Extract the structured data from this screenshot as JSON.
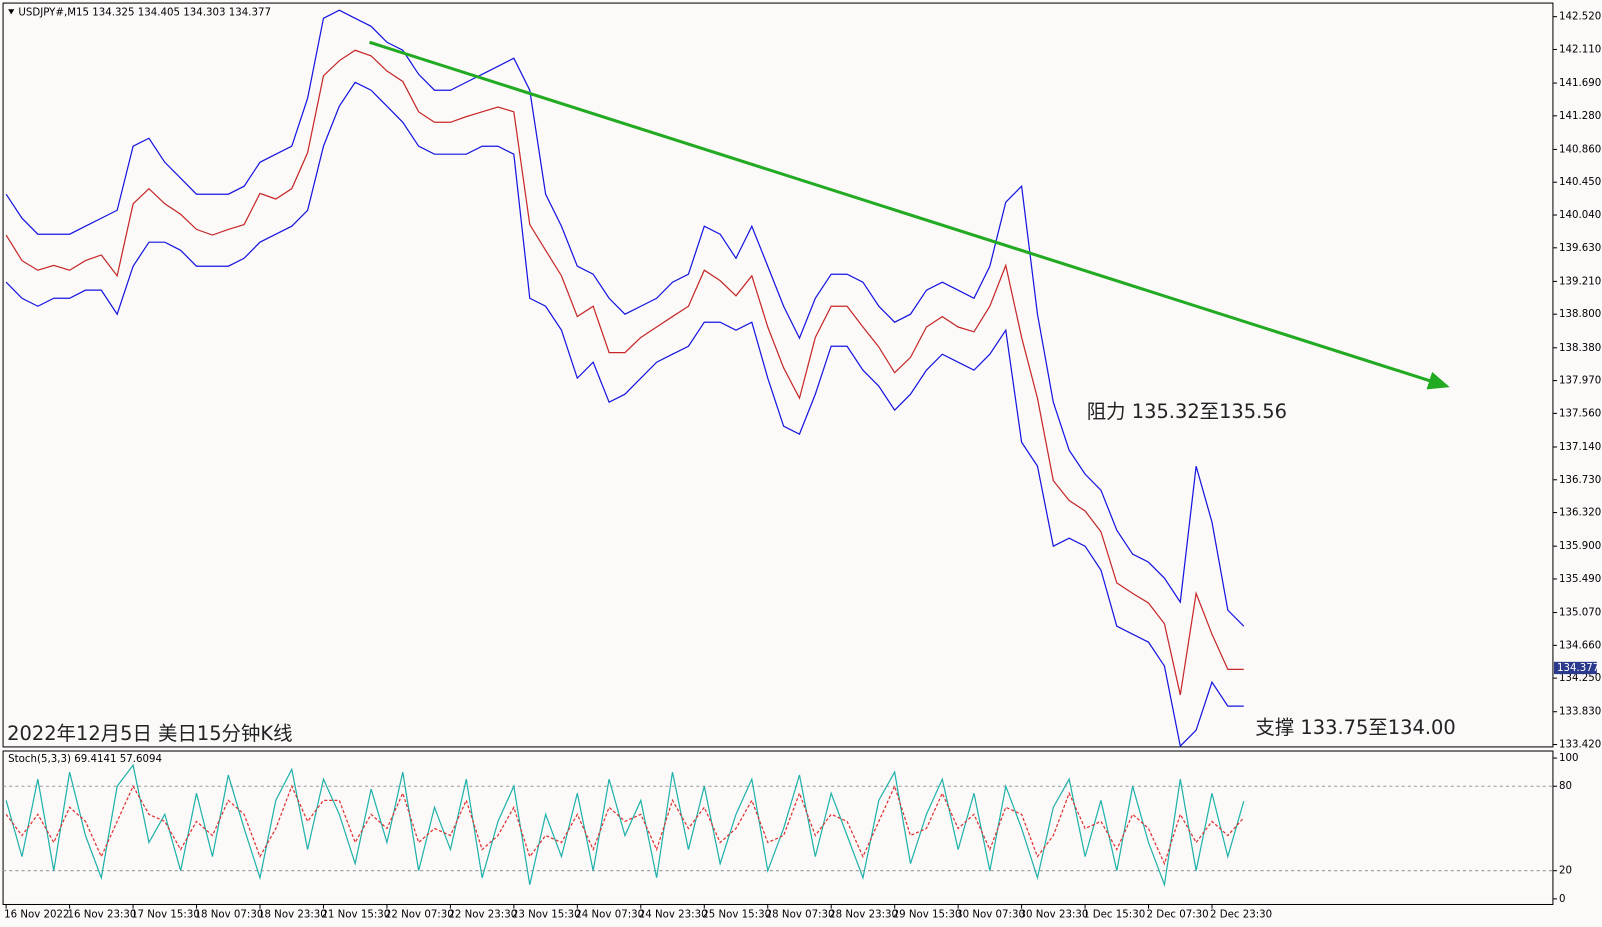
{
  "chart_data": [
    {
      "type": "line",
      "title": "USDJPY#,M15",
      "ohlc": [
        134.325,
        134.405,
        134.303,
        134.377
      ],
      "categories": [
        "16 Nov 2022",
        null,
        null,
        null,
        "16 Nov 23:30",
        null,
        null,
        null,
        "17 Nov 15:30",
        null,
        null,
        null,
        "18 Nov 07:30",
        null,
        null,
        null,
        "18 Nov 23:30",
        null,
        null,
        null,
        "21 Nov 15:30",
        null,
        null,
        null,
        "22 Nov 07:30",
        null,
        null,
        null,
        "22 Nov 23:30",
        null,
        null,
        null,
        "23 Nov 15:30",
        null,
        null,
        null,
        "24 Nov 07:30",
        null,
        null,
        null,
        "24 Nov 23:30",
        null,
        null,
        null,
        "25 Nov 15:30",
        null,
        null,
        null,
        "28 Nov 07:30",
        null,
        null,
        null,
        "28 Nov 23:30",
        null,
        null,
        null,
        "29 Nov 15:30",
        null,
        null,
        null,
        "30 Nov 07:30",
        null,
        null,
        null,
        "30 Nov 23:30",
        null,
        null,
        null,
        "1 Dec 15:30",
        null,
        null,
        null,
        "2 Dec 07:30",
        null,
        null,
        null,
        "2 Dec 23:30",
        null,
        null
      ],
      "series": [
        {
          "color": "#1515e0",
          "values": [
            140.3,
            140.0,
            139.8,
            139.8,
            139.8,
            139.9,
            140.0,
            140.1,
            140.9,
            141.0,
            140.7,
            140.5,
            140.3,
            140.3,
            140.3,
            140.4,
            140.7,
            140.8,
            140.9,
            141.5,
            142.5,
            142.6,
            142.5,
            142.4,
            142.2,
            142.1,
            141.8,
            141.6,
            141.6,
            141.7,
            141.8,
            141.9,
            142.0,
            141.6,
            140.3,
            139.9,
            139.4,
            139.3,
            139.0,
            138.8,
            138.9,
            139.0,
            139.2,
            139.3,
            139.9,
            139.8,
            139.5,
            139.9,
            139.4,
            138.9,
            138.5,
            139.0,
            139.3,
            139.3,
            139.2,
            138.9,
            138.7,
            138.8,
            139.1,
            139.2,
            139.1,
            139.0,
            139.4,
            140.2,
            140.4,
            138.8,
            137.7,
            137.1,
            136.8,
            136.6,
            136.1,
            135.8,
            135.7,
            135.5,
            135.2,
            136.9,
            136.2,
            135.1,
            134.9
          ]
        },
        {
          "color": "#1515e0",
          "values": [
            139.2,
            139.0,
            138.9,
            139.0,
            139.0,
            139.1,
            139.1,
            138.8,
            139.4,
            139.7,
            139.7,
            139.6,
            139.4,
            139.4,
            139.4,
            139.5,
            139.7,
            139.8,
            139.9,
            140.1,
            140.9,
            141.4,
            141.7,
            141.6,
            141.4,
            141.2,
            140.9,
            140.8,
            140.8,
            140.8,
            140.9,
            140.9,
            140.8,
            139.0,
            138.9,
            138.6,
            138.0,
            138.2,
            137.7,
            137.8,
            138.0,
            138.2,
            138.3,
            138.4,
            138.7,
            138.7,
            138.6,
            138.7,
            138.0,
            137.4,
            137.3,
            137.8,
            138.4,
            138.4,
            138.1,
            137.9,
            137.6,
            137.8,
            138.1,
            138.3,
            138.2,
            138.1,
            138.3,
            138.6,
            137.2,
            136.9,
            135.9,
            136.0,
            135.9,
            135.6,
            134.9,
            134.8,
            134.7,
            134.4,
            133.4,
            133.6,
            134.2,
            133.9,
            133.9
          ]
        },
        {
          "color": "#c62828",
          "values": [
            139.79,
            139.47,
            139.35,
            139.41,
            139.35,
            139.47,
            139.54,
            139.28,
            140.18,
            140.37,
            140.18,
            140.05,
            139.86,
            139.79,
            139.86,
            139.92,
            140.31,
            140.24,
            140.37,
            140.82,
            141.78,
            141.97,
            142.1,
            142.03,
            141.84,
            141.71,
            141.33,
            141.2,
            141.2,
            141.27,
            141.33,
            141.39,
            141.33,
            139.92,
            139.6,
            139.28,
            138.77,
            138.9,
            138.32,
            138.32,
            138.51,
            138.64,
            138.77,
            138.9,
            139.35,
            139.22,
            139.03,
            139.28,
            138.64,
            138.13,
            137.75,
            138.51,
            138.9,
            138.9,
            138.64,
            138.39,
            138.07,
            138.26,
            138.64,
            138.77,
            138.64,
            138.58,
            138.9,
            139.41,
            138.51,
            137.75,
            136.72,
            136.47,
            136.34,
            136.08,
            135.44,
            135.31,
            135.19,
            134.93,
            134.04,
            135.31,
            134.8,
            134.36,
            134.36
          ]
        }
      ],
      "ylim": [
        133.39,
        142.69
      ],
      "yticks": [
        {
          "value": 142.52,
          "label": "142.520"
        },
        {
          "value": 142.11,
          "label": "142.110"
        },
        {
          "value": 141.69,
          "label": "141.690"
        },
        {
          "value": 141.28,
          "label": "141.280"
        },
        {
          "value": 140.86,
          "label": "140.860"
        },
        {
          "value": 140.45,
          "label": "140.450"
        },
        {
          "value": 140.04,
          "label": "140.040"
        },
        {
          "value": 139.63,
          "label": "139.630"
        },
        {
          "value": 139.21,
          "label": "139.210"
        },
        {
          "value": 138.8,
          "label": "138.800"
        },
        {
          "value": 138.38,
          "label": "138.380"
        },
        {
          "value": 137.97,
          "label": "137.970"
        },
        {
          "value": 137.56,
          "label": "137.560"
        },
        {
          "value": 137.14,
          "label": "137.140"
        },
        {
          "value": 136.73,
          "label": "136.730"
        },
        {
          "value": 136.32,
          "label": "136.320"
        },
        {
          "value": 135.9,
          "label": "135.900"
        },
        {
          "value": 135.49,
          "label": "135.490"
        },
        {
          "value": 135.07,
          "label": "135.070"
        },
        {
          "value": 134.66,
          "label": "134.660"
        },
        {
          "value": 134.25,
          "label": "134.250"
        },
        {
          "value": 133.83,
          "label": "133.830"
        },
        {
          "value": 133.42,
          "label": "133.420"
        }
      ],
      "trendline": {
        "x": [
          22.9,
          90.8
        ],
        "y": [
          142.2,
          137.9
        ],
        "color": "#22aa22"
      },
      "annotations": [
        "阻力 135.32至135.56",
        "支撑 133.75至134.00",
        "2022年12月5日 美日15分钟K线"
      ]
    },
    {
      "type": "line",
      "title": "Stoch(5,3,3)",
      "readings": [
        69.4141,
        57.6094
      ],
      "series": [
        {
          "color": "#20b2aa",
          "values": [
            70,
            30,
            85,
            20,
            90,
            45,
            15,
            80,
            95,
            40,
            60,
            20,
            75,
            30,
            88,
            50,
            15,
            70,
            92,
            35,
            85,
            60,
            25,
            78,
            40,
            90,
            20,
            65,
            35,
            85,
            15,
            55,
            80,
            10,
            60,
            30,
            75,
            20,
            85,
            45,
            70,
            15,
            90,
            35,
            80,
            25,
            60,
            85,
            20,
            50,
            88,
            30,
            75,
            45,
            15,
            70,
            90,
            25,
            60,
            85,
            35,
            75,
            20,
            80,
            50,
            15,
            65,
            85,
            30,
            70,
            20,
            80,
            40,
            10,
            85,
            20,
            75,
            30,
            69.41
          ]
        },
        {
          "color": "#e03030",
          "dash": true,
          "values": [
            60,
            45,
            60,
            40,
            65,
            55,
            30,
            55,
            80,
            60,
            55,
            35,
            55,
            45,
            70,
            60,
            30,
            50,
            80,
            55,
            70,
            70,
            40,
            60,
            50,
            75,
            40,
            50,
            45,
            70,
            35,
            45,
            65,
            30,
            45,
            40,
            60,
            35,
            65,
            55,
            60,
            35,
            70,
            50,
            65,
            40,
            50,
            70,
            40,
            45,
            75,
            45,
            60,
            55,
            30,
            55,
            80,
            45,
            50,
            75,
            50,
            60,
            35,
            65,
            60,
            30,
            45,
            75,
            50,
            55,
            35,
            60,
            50,
            25,
            60,
            40,
            55,
            45,
            57.61
          ]
        }
      ],
      "ylim": [
        -4,
        105
      ],
      "yticks": [
        0,
        20,
        80,
        100
      ],
      "levels": [
        20,
        80
      ]
    }
  ]
}
